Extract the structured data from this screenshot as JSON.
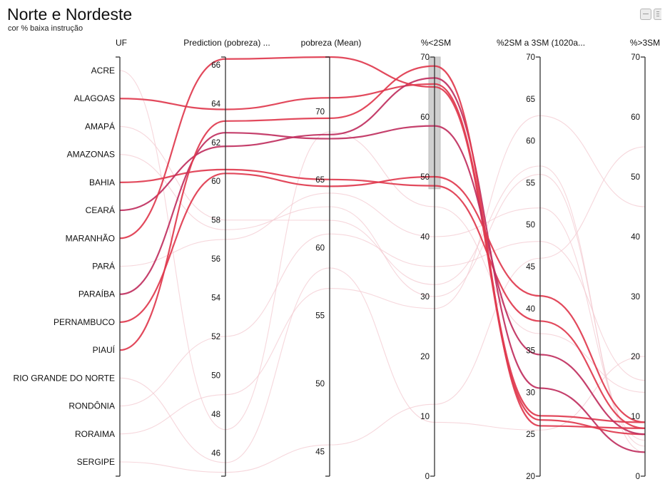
{
  "header": {
    "title": "Norte e Nordeste",
    "subtitle": "cor % baixa instrução"
  },
  "toolbar": {
    "icons": [
      "minimize-icon",
      "menu-icon"
    ]
  },
  "colors": {
    "highlight": "#e03a4e",
    "highlight_dark": "#c03060",
    "faded": "#f3c9d0",
    "axis": "#333333",
    "brush": "#c8c8c8"
  },
  "chart_data": {
    "type": "parallel_coordinates",
    "axes": [
      {
        "key": "uf",
        "label": "UF",
        "kind": "categorical",
        "categories": [
          "ACRE",
          "ALAGOAS",
          "AMAPÁ",
          "AMAZONAS",
          "BAHIA",
          "CEARÁ",
          "MARANHÃO",
          "PARÁ",
          "PARAÍBA",
          "PERNAMBUCO",
          "PIAUÍ",
          "RIO GRANDE DO NORTE",
          "RONDÔNIA",
          "RORAIMA",
          "SERGIPE"
        ]
      },
      {
        "key": "pred",
        "label": "Prediction (pobreza) ...",
        "kind": "linear",
        "domain": [
          44.8,
          66.4
        ],
        "ticks": [
          46,
          48,
          50,
          52,
          54,
          56,
          58,
          60,
          62,
          64,
          66
        ]
      },
      {
        "key": "pobreza",
        "label": "pobreza (Mean)",
        "kind": "linear",
        "domain": [
          43.2,
          74.0
        ],
        "ticks": [
          45,
          50,
          55,
          60,
          65,
          70
        ]
      },
      {
        "key": "lt2",
        "label": "%<2SM",
        "kind": "linear",
        "domain": [
          0,
          70
        ],
        "ticks": [
          0,
          10,
          20,
          30,
          40,
          50,
          60,
          70
        ],
        "brush": [
          48,
          70
        ]
      },
      {
        "key": "mid",
        "label": "%2SM a 3SM (1020a...",
        "kind": "linear",
        "domain": [
          20,
          70
        ],
        "ticks": [
          20,
          25,
          30,
          35,
          40,
          45,
          50,
          55,
          60,
          65,
          70
        ]
      },
      {
        "key": "gt3",
        "label": "%>3SM",
        "kind": "linear",
        "domain": [
          0,
          70
        ],
        "ticks": [
          0,
          10,
          20,
          30,
          40,
          50,
          60,
          70
        ]
      }
    ],
    "series": [
      {
        "name": "ACRE",
        "selected": false,
        "values": {
          "pred": 47.2,
          "pobreza": 68.5,
          "lt2": 45,
          "mid": 37,
          "gt3": 14
        }
      },
      {
        "name": "ALAGOAS",
        "selected": true,
        "values": {
          "pred": 63.7,
          "pobreza": 71.0,
          "lt2": 65.5,
          "mid": 27.2,
          "gt3": 9
        }
      },
      {
        "name": "AMAPÁ",
        "selected": false,
        "values": {
          "pred": 58.0,
          "pobreza": 62.0,
          "lt2": 32,
          "mid": 57,
          "gt3": 4
        }
      },
      {
        "name": "AMAZONAS",
        "selected": false,
        "values": {
          "pred": 57.5,
          "pobreza": 63.0,
          "lt2": 30,
          "mid": 56,
          "gt3": 5
        }
      },
      {
        "name": "BAHIA",
        "selected": true,
        "values": {
          "pred": 60.6,
          "pobreza": 65.0,
          "lt2": 48.5,
          "mid": 38.5,
          "gt3": 8
        }
      },
      {
        "name": "CEARÁ",
        "selected": true,
        "values": {
          "pred": 61.8,
          "pobreza": 68.3,
          "lt2": 66.5,
          "mid": 30.5,
          "gt3": 4
        }
      },
      {
        "name": "MARANHÃO",
        "selected": true,
        "values": {
          "pred": 66.3,
          "pobreza": 74.0,
          "lt2": 65.0,
          "mid": 26.7,
          "gt3": 7
        }
      },
      {
        "name": "PARÁ",
        "selected": false,
        "values": {
          "pred": 57.0,
          "pobreza": 64.0,
          "lt2": 40,
          "mid": 52,
          "gt3": 6
        }
      },
      {
        "name": "PARAÍBA",
        "selected": true,
        "values": {
          "pred": 62.5,
          "pobreza": 68.0,
          "lt2": 58.5,
          "mid": 34.5,
          "gt3": 7
        }
      },
      {
        "name": "PERNAMBUCO",
        "selected": true,
        "values": {
          "pred": 60.4,
          "pobreza": 64.5,
          "lt2": 50.0,
          "mid": 41.5,
          "gt3": 9
        }
      },
      {
        "name": "PIAUÍ",
        "selected": true,
        "values": {
          "pred": 63.1,
          "pobreza": 69.5,
          "lt2": 68.5,
          "mid": 26.0,
          "gt3": 8
        }
      },
      {
        "name": "RIO GRANDE DO NORTE",
        "selected": false,
        "values": {
          "pred": 45.5,
          "pobreza": 58.5,
          "lt2": 9,
          "mid": 25.5,
          "gt3": 20
        }
      },
      {
        "name": "RONDÔNIA",
        "selected": false,
        "values": {
          "pred": 52.0,
          "pobreza": 61.0,
          "lt2": 35,
          "mid": 48,
          "gt3": 16
        }
      },
      {
        "name": "RORAIMA",
        "selected": false,
        "values": {
          "pred": 49.0,
          "pobreza": 57.0,
          "lt2": 28,
          "mid": 63,
          "gt3": 45
        }
      },
      {
        "name": "SERGIPE",
        "selected": false,
        "values": {
          "pred": 45.0,
          "pobreza": 45.5,
          "lt2": 12,
          "mid": 46,
          "gt3": 55
        }
      }
    ]
  }
}
